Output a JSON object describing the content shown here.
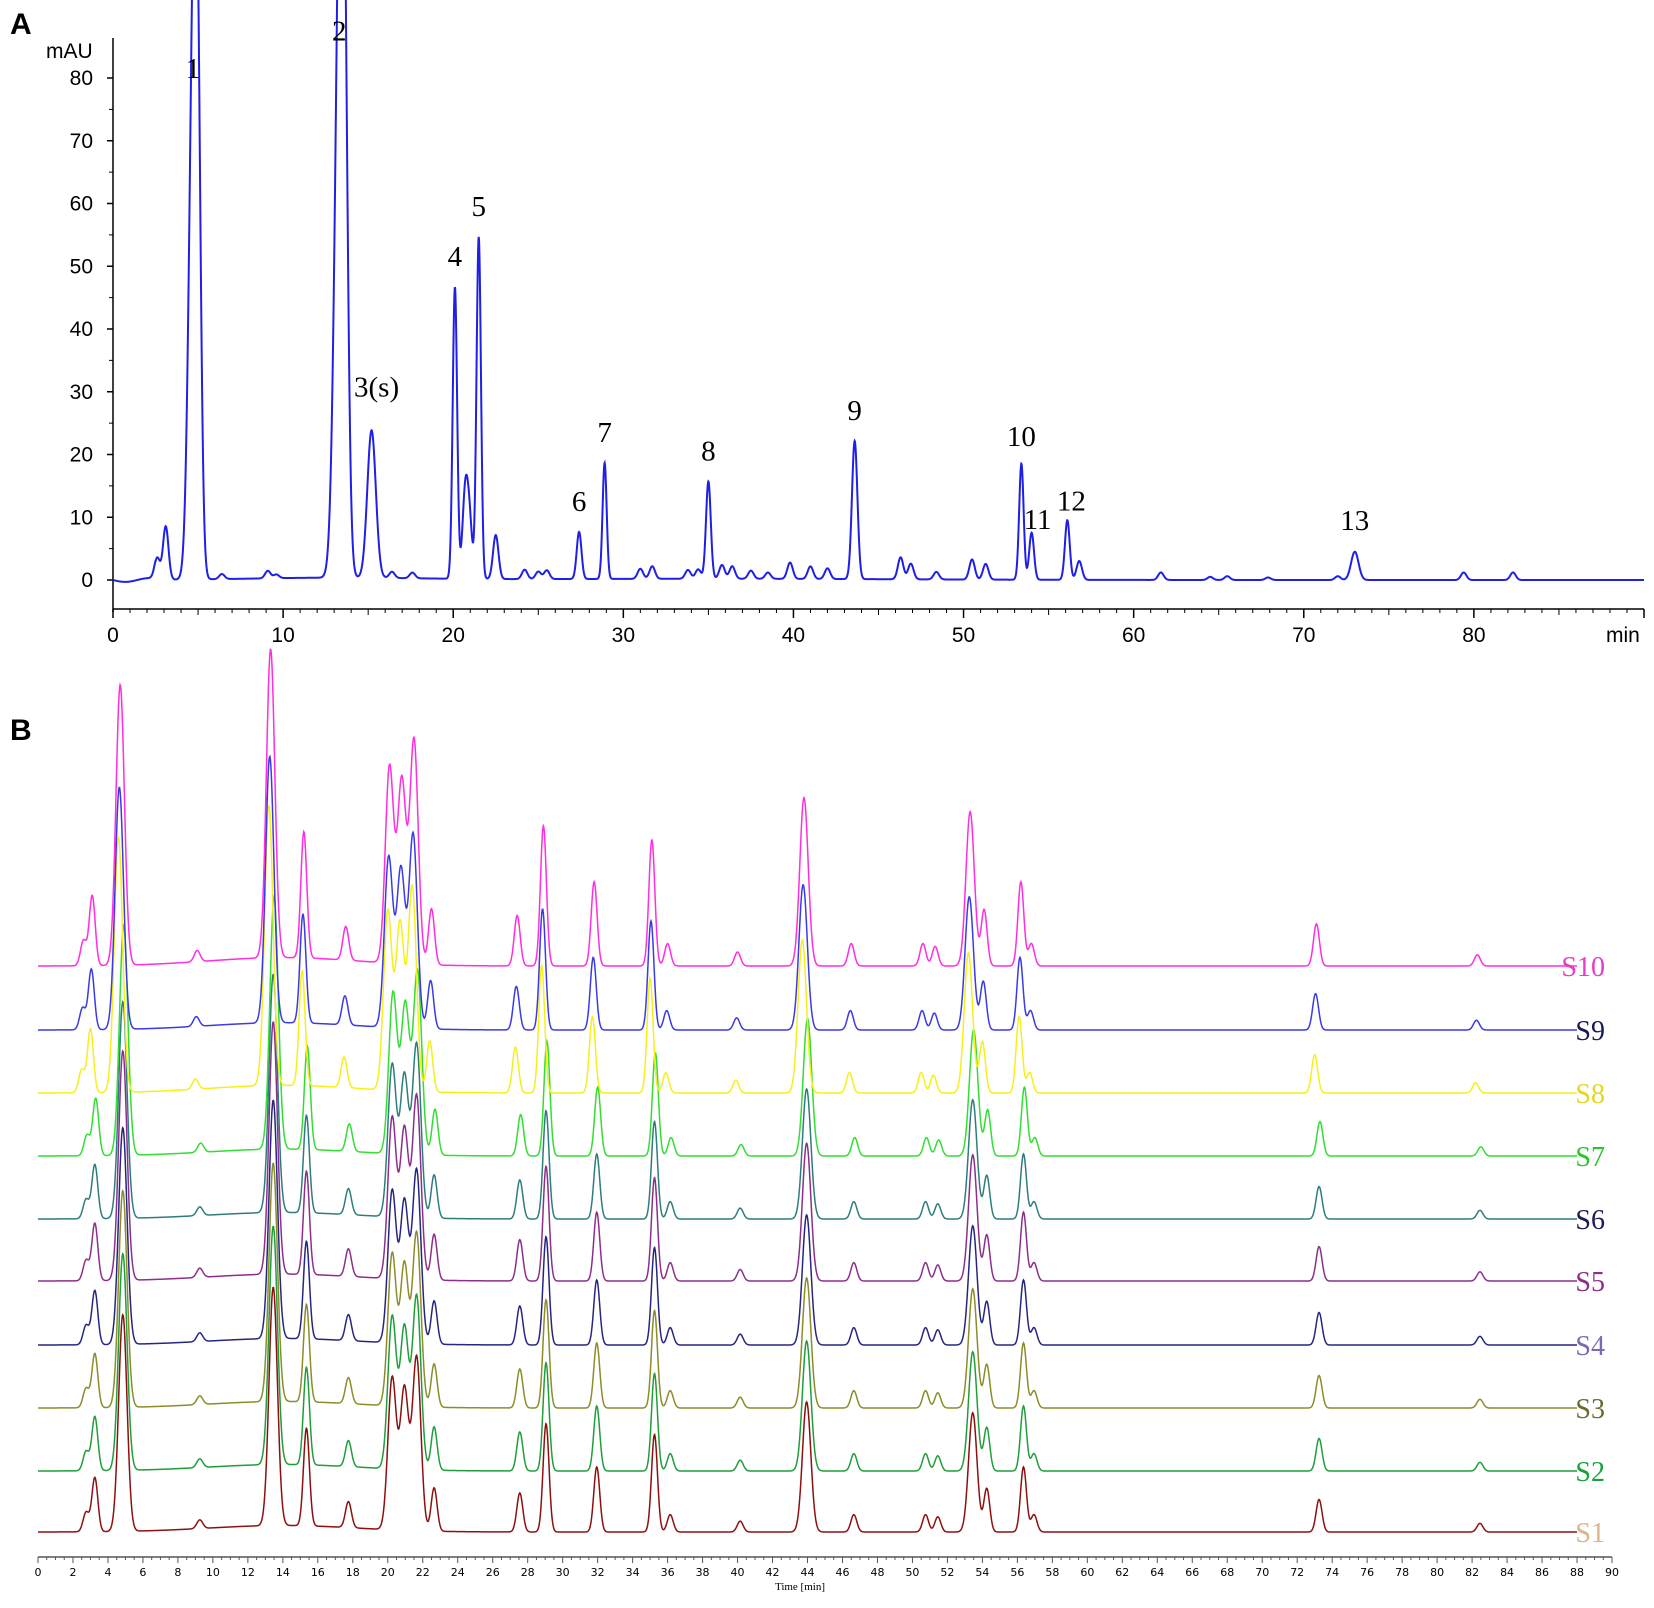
{
  "chart_data": [
    {
      "panel": "A",
      "type": "line",
      "panel_label": "A",
      "ylabel": "mAU",
      "xlabel": "min",
      "xlim": [
        0,
        90
      ],
      "ylim": [
        -5,
        85
      ],
      "yticks": [
        0,
        10,
        20,
        30,
        40,
        50,
        60,
        70,
        80
      ],
      "xticks": [
        0,
        10,
        20,
        30,
        40,
        50,
        60,
        70,
        80
      ],
      "line_color": "#1f1fe6",
      "peaks": [
        {
          "label": "1",
          "x": 4.7,
          "y": 75.5,
          "w": 0.25,
          "minor": [
            4.95,
            64
          ]
        },
        {
          "label": "2",
          "x": 13.3,
          "y": 82.5,
          "w": 0.28,
          "minor": [
            13.55,
            73
          ]
        },
        {
          "label": "3(s)",
          "x": 15.2,
          "y": 23.5,
          "w": 0.25
        },
        {
          "label": "4",
          "x": 20.1,
          "y": 46.5,
          "w": 0.13
        },
        {
          "label": "5",
          "x": 21.5,
          "y": 54.5,
          "w": 0.13
        },
        {
          "label": "6",
          "x": 27.4,
          "y": 7.5,
          "w": 0.14
        },
        {
          "label": "7",
          "x": 28.9,
          "y": 18.5,
          "w": 0.12
        },
        {
          "label": "8",
          "x": 35.0,
          "y": 15.5,
          "w": 0.14
        },
        {
          "label": "9",
          "x": 43.6,
          "y": 22.0,
          "w": 0.16
        },
        {
          "label": "10",
          "x": 53.4,
          "y": 18.5,
          "w": 0.13
        },
        {
          "label": "11",
          "x": 54.0,
          "y": 7.5,
          "w": 0.14
        },
        {
          "label": "12",
          "x": 56.1,
          "y": 9.5,
          "w": 0.14
        },
        {
          "label": "13",
          "x": 73.0,
          "y": 4.5,
          "w": 0.22
        }
      ],
      "minor_peaks": [
        [
          2.6,
          3.5
        ],
        [
          3.1,
          8.5
        ],
        [
          6.4,
          0.8
        ],
        [
          9.1,
          1.2
        ],
        [
          9.6,
          0.6
        ],
        [
          16.4,
          1.0
        ],
        [
          17.6,
          0.9
        ],
        [
          20.7,
          13
        ],
        [
          20.95,
          9
        ],
        [
          22.5,
          7
        ],
        [
          24.2,
          1.5
        ],
        [
          25.0,
          1.2
        ],
        [
          25.5,
          1.4
        ],
        [
          31.0,
          1.6
        ],
        [
          31.7,
          2.0
        ],
        [
          33.8,
          1.4
        ],
        [
          34.4,
          1.5
        ],
        [
          35.8,
          2.2
        ],
        [
          36.4,
          2.0
        ],
        [
          37.5,
          1.3
        ],
        [
          38.5,
          1.0
        ],
        [
          39.8,
          2.6
        ],
        [
          41.0,
          2.0
        ],
        [
          42.0,
          1.7
        ],
        [
          46.3,
          3.5
        ],
        [
          46.9,
          2.5
        ],
        [
          48.4,
          1.2
        ],
        [
          50.5,
          3.2
        ],
        [
          51.3,
          2.5
        ],
        [
          56.8,
          3.0
        ],
        [
          61.6,
          1.2
        ],
        [
          64.5,
          0.5
        ],
        [
          65.5,
          0.6
        ],
        [
          67.9,
          0.4
        ],
        [
          72.0,
          0.6
        ],
        [
          79.4,
          1.2
        ],
        [
          82.3,
          1.2
        ]
      ]
    },
    {
      "panel": "B",
      "type": "line",
      "panel_label": "B",
      "xlabel": "Time [min]",
      "xlim": [
        0,
        90
      ],
      "xticks": [
        0,
        2,
        4,
        6,
        8,
        10,
        12,
        14,
        16,
        18,
        20,
        22,
        24,
        26,
        28,
        30,
        32,
        34,
        36,
        38,
        40,
        42,
        44,
        46,
        48,
        50,
        52,
        54,
        56,
        58,
        60,
        62,
        64,
        66,
        68,
        70,
        72,
        74,
        76,
        78,
        80,
        82,
        84,
        86,
        88,
        90
      ],
      "series": [
        {
          "name": "S10",
          "color": "#ff2ee0",
          "label_color": "#e83ac9",
          "x_offset": 0.0,
          "scale": 1.1
        },
        {
          "name": "S9",
          "color": "#3a3ae6",
          "label_color": "#1a1a5a",
          "x_offset": -0.05,
          "scale": 0.95
        },
        {
          "name": "S8",
          "color": "#f5f01a",
          "label_color": "#e3d722",
          "x_offset": -0.1,
          "scale": 1.0
        },
        {
          "name": "S7",
          "color": "#33dd33",
          "label_color": "#2bc42b",
          "x_offset": 0.2,
          "scale": 0.9
        },
        {
          "name": "S6",
          "color": "#2e7d7d",
          "label_color": "#1a1a5a",
          "x_offset": 0.15,
          "scale": 0.85
        },
        {
          "name": "S5",
          "color": "#8c2f8c",
          "label_color": "#8c2f8c",
          "x_offset": 0.15,
          "scale": 0.9
        },
        {
          "name": "S4",
          "color": "#262680",
          "label_color": "#7c6ab0",
          "x_offset": 0.15,
          "scale": 0.85
        },
        {
          "name": "S3",
          "color": "#8c8c2a",
          "label_color": "#6e6a30",
          "x_offset": 0.15,
          "scale": 0.85
        },
        {
          "name": "S2",
          "color": "#1f9e3a",
          "label_color": "#16a33a",
          "x_offset": 0.15,
          "scale": 0.85
        },
        {
          "name": "S1",
          "color": "#8c1010",
          "label_color": "#d9b48c",
          "x_offset": 0.15,
          "scale": 0.85
        }
      ],
      "profile": [
        [
          2.6,
          0.09
        ],
        [
          3.1,
          0.25
        ],
        [
          4.7,
          1.0
        ],
        [
          9.1,
          0.04
        ],
        [
          13.3,
          1.1
        ],
        [
          15.2,
          0.45
        ],
        [
          17.6,
          0.12
        ],
        [
          20.1,
          0.7
        ],
        [
          20.8,
          0.65
        ],
        [
          21.5,
          0.8
        ],
        [
          22.5,
          0.2
        ],
        [
          27.4,
          0.18
        ],
        [
          28.9,
          0.5
        ],
        [
          31.8,
          0.3
        ],
        [
          35.1,
          0.45
        ],
        [
          36.0,
          0.08
        ],
        [
          40.0,
          0.05
        ],
        [
          43.8,
          0.6
        ],
        [
          46.5,
          0.08
        ],
        [
          50.6,
          0.08
        ],
        [
          51.3,
          0.07
        ],
        [
          53.3,
          0.55
        ],
        [
          54.1,
          0.2
        ],
        [
          56.2,
          0.3
        ],
        [
          56.8,
          0.08
        ],
        [
          73.1,
          0.15
        ],
        [
          82.3,
          0.04
        ]
      ]
    }
  ]
}
